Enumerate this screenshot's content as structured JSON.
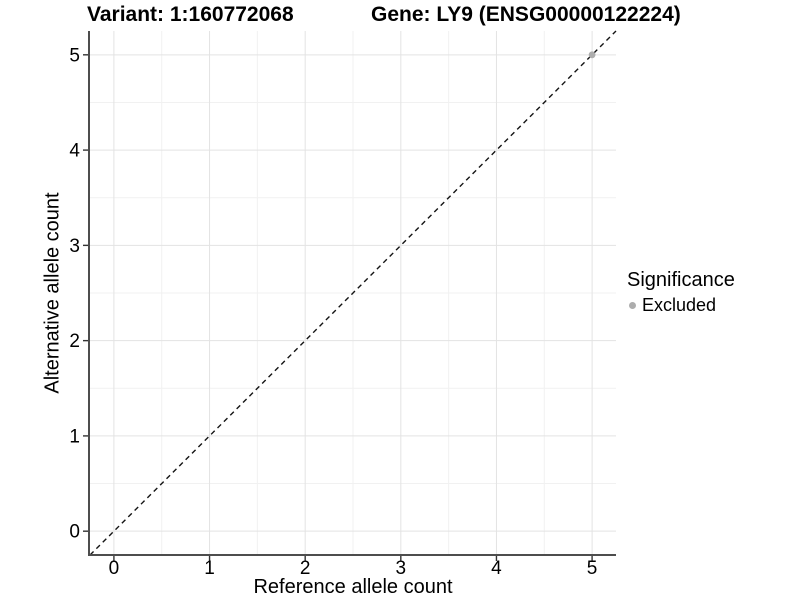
{
  "titles": {
    "variant": "Variant: 1:160772068",
    "gene": "Gene: LY9 (ENSG00000122224)"
  },
  "legend": {
    "title": "Significance",
    "items": [
      {
        "label": "Excluded",
        "color": "#adadad",
        "marker": "dot"
      }
    ]
  },
  "chart_data": {
    "type": "scatter",
    "title": "Variant: 1:160772068 — Gene: LY9 (ENSG00000122224)",
    "xlabel": "Reference allele count",
    "ylabel": "Alternative allele count",
    "xlim": [
      -0.25,
      5.25
    ],
    "ylim": [
      -0.25,
      5.25
    ],
    "x_ticks": [
      0,
      1,
      2,
      3,
      4,
      5
    ],
    "y_ticks": [
      0,
      1,
      2,
      3,
      4,
      5
    ],
    "x_minor_ticks": [
      0.5,
      1.5,
      2.5,
      3.5,
      4.5
    ],
    "y_minor_ticks": [
      0.5,
      1.5,
      2.5,
      3.5,
      4.5
    ],
    "grid": "major+minor",
    "legend_position": "right",
    "series": [
      {
        "name": "Excluded",
        "color": "#adadad",
        "points": [
          {
            "x": 5,
            "y": 5
          }
        ]
      }
    ],
    "reference_line": {
      "type": "abline",
      "slope": 1,
      "intercept": 0,
      "style": "dashed",
      "color": "#141414"
    },
    "colors": {
      "panel_background": "#ffffff",
      "grid_major": "#e3e3e3",
      "grid_minor": "#f1f1f1",
      "axis_line": "#4d4d4d",
      "tick_mark": "#333333",
      "tick_label": "#000000"
    }
  }
}
